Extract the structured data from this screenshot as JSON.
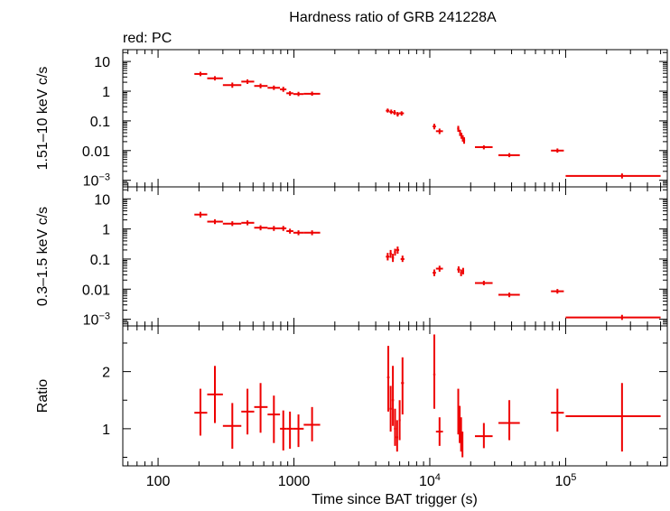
{
  "chart_data": {
    "type": "scatter",
    "title": "Hardness ratio of GRB 241228A",
    "subtitle": "red: PC",
    "xlabel": "Time since BAT trigger (s)",
    "xscale": "log",
    "xlim": [
      55,
      560000
    ],
    "x_ticks": [
      {
        "value": 100,
        "label": "100"
      },
      {
        "value": 1000,
        "label": "1000"
      },
      {
        "value": 10000,
        "label": "10",
        "sup": "4"
      },
      {
        "value": 100000,
        "label": "10",
        "sup": "5"
      }
    ],
    "series_color": "#ee0000",
    "panels": [
      {
        "name": "hard",
        "ylabel": "1.51–10 keV c/s",
        "yscale": "log",
        "ylim": [
          0.0006,
          25
        ],
        "y_ticks": [
          {
            "value": 10,
            "label": "10"
          },
          {
            "value": 1,
            "label": "1"
          },
          {
            "value": 0.1,
            "label": "0.1"
          },
          {
            "value": 0.01,
            "label": "0.01"
          },
          {
            "value": 0.001,
            "label": "10",
            "sup": "−3"
          }
        ],
        "points": [
          {
            "x": 205,
            "xlo": 185,
            "xhi": 230,
            "y": 3.8,
            "ylo": 3.2,
            "yhi": 4.5
          },
          {
            "x": 262,
            "xlo": 230,
            "xhi": 300,
            "y": 2.7,
            "ylo": 2.3,
            "yhi": 3.2
          },
          {
            "x": 352,
            "xlo": 300,
            "xhi": 410,
            "y": 1.6,
            "ylo": 1.3,
            "yhi": 1.95
          },
          {
            "x": 455,
            "xlo": 410,
            "xhi": 510,
            "y": 2.1,
            "ylo": 1.75,
            "yhi": 2.5
          },
          {
            "x": 568,
            "xlo": 510,
            "xhi": 640,
            "y": 1.5,
            "ylo": 1.25,
            "yhi": 1.8
          },
          {
            "x": 712,
            "xlo": 640,
            "xhi": 790,
            "y": 1.3,
            "ylo": 1.1,
            "yhi": 1.55
          },
          {
            "x": 835,
            "xlo": 790,
            "xhi": 880,
            "y": 1.15,
            "ylo": 0.95,
            "yhi": 1.4
          },
          {
            "x": 935,
            "xlo": 880,
            "xhi": 990,
            "y": 0.85,
            "ylo": 0.7,
            "yhi": 1.0
          },
          {
            "x": 1080,
            "xlo": 990,
            "xhi": 1180,
            "y": 0.8,
            "ylo": 0.68,
            "yhi": 0.95
          },
          {
            "x": 1360,
            "xlo": 1180,
            "xhi": 1560,
            "y": 0.82,
            "ylo": 0.7,
            "yhi": 0.97
          },
          {
            "x": 4900,
            "xlo": 4750,
            "xhi": 5050,
            "y": 0.22,
            "ylo": 0.19,
            "yhi": 0.26
          },
          {
            "x": 5200,
            "xlo": 5050,
            "xhi": 5350,
            "y": 0.2,
            "ylo": 0.17,
            "yhi": 0.24
          },
          {
            "x": 5500,
            "xlo": 5350,
            "xhi": 5650,
            "y": 0.19,
            "ylo": 0.16,
            "yhi": 0.23
          },
          {
            "x": 5800,
            "xlo": 5650,
            "xhi": 5950,
            "y": 0.17,
            "ylo": 0.14,
            "yhi": 0.2
          },
          {
            "x": 6200,
            "xlo": 5950,
            "xhi": 6450,
            "y": 0.18,
            "ylo": 0.15,
            "yhi": 0.21
          },
          {
            "x": 10800,
            "xlo": 10500,
            "xhi": 11100,
            "y": 0.065,
            "ylo": 0.052,
            "yhi": 0.08
          },
          {
            "x": 11800,
            "xlo": 11100,
            "xhi": 12500,
            "y": 0.045,
            "ylo": 0.036,
            "yhi": 0.055
          },
          {
            "x": 16200,
            "xlo": 15900,
            "xhi": 16500,
            "y": 0.055,
            "ylo": 0.043,
            "yhi": 0.068
          },
          {
            "x": 16700,
            "xlo": 16500,
            "xhi": 16900,
            "y": 0.04,
            "ylo": 0.031,
            "yhi": 0.05
          },
          {
            "x": 17100,
            "xlo": 16900,
            "xhi": 17300,
            "y": 0.032,
            "ylo": 0.025,
            "yhi": 0.04
          },
          {
            "x": 17500,
            "xlo": 17300,
            "xhi": 17700,
            "y": 0.026,
            "ylo": 0.02,
            "yhi": 0.033
          },
          {
            "x": 17900,
            "xlo": 17700,
            "xhi": 18200,
            "y": 0.022,
            "ylo": 0.017,
            "yhi": 0.028
          },
          {
            "x": 25000,
            "xlo": 21500,
            "xhi": 29000,
            "y": 0.013,
            "ylo": 0.011,
            "yhi": 0.015
          },
          {
            "x": 38500,
            "xlo": 32000,
            "xhi": 46000,
            "y": 0.007,
            "ylo": 0.006,
            "yhi": 0.0082
          },
          {
            "x": 87000,
            "xlo": 78000,
            "xhi": 97000,
            "y": 0.01,
            "ylo": 0.0085,
            "yhi": 0.0118
          },
          {
            "x": 260000,
            "xlo": 100000,
            "xhi": 500000,
            "y": 0.0014,
            "ylo": 0.00115,
            "yhi": 0.0017
          }
        ]
      },
      {
        "name": "soft",
        "ylabel": "0.3–1.5 keV c/s",
        "yscale": "log",
        "ylim": [
          0.0006,
          25
        ],
        "y_ticks": [
          {
            "value": 10,
            "label": "10"
          },
          {
            "value": 1,
            "label": "1"
          },
          {
            "value": 0.1,
            "label": "0.1"
          },
          {
            "value": 0.01,
            "label": "0.01"
          },
          {
            "value": 0.001,
            "label": "10",
            "sup": "−3"
          }
        ],
        "points": [
          {
            "x": 205,
            "xlo": 185,
            "xhi": 230,
            "y": 3.0,
            "ylo": 2.4,
            "yhi": 3.7
          },
          {
            "x": 262,
            "xlo": 230,
            "xhi": 300,
            "y": 1.75,
            "ylo": 1.45,
            "yhi": 2.1
          },
          {
            "x": 352,
            "xlo": 300,
            "xhi": 410,
            "y": 1.5,
            "ylo": 1.25,
            "yhi": 1.8
          },
          {
            "x": 455,
            "xlo": 410,
            "xhi": 510,
            "y": 1.6,
            "ylo": 1.32,
            "yhi": 1.92
          },
          {
            "x": 568,
            "xlo": 510,
            "xhi": 640,
            "y": 1.1,
            "ylo": 0.9,
            "yhi": 1.32
          },
          {
            "x": 712,
            "xlo": 640,
            "xhi": 790,
            "y": 1.05,
            "ylo": 0.86,
            "yhi": 1.26
          },
          {
            "x": 835,
            "xlo": 790,
            "xhi": 880,
            "y": 1.05,
            "ylo": 0.86,
            "yhi": 1.26
          },
          {
            "x": 935,
            "xlo": 880,
            "xhi": 990,
            "y": 0.85,
            "ylo": 0.7,
            "yhi": 1.02
          },
          {
            "x": 1080,
            "xlo": 990,
            "xhi": 1180,
            "y": 0.75,
            "ylo": 0.62,
            "yhi": 0.9
          },
          {
            "x": 1360,
            "xlo": 1180,
            "xhi": 1560,
            "y": 0.75,
            "ylo": 0.62,
            "yhi": 0.9
          },
          {
            "x": 4900,
            "xlo": 4750,
            "xhi": 5050,
            "y": 0.12,
            "ylo": 0.09,
            "yhi": 0.16
          },
          {
            "x": 5150,
            "xlo": 5050,
            "xhi": 5250,
            "y": 0.15,
            "ylo": 0.11,
            "yhi": 0.2
          },
          {
            "x": 5350,
            "xlo": 5250,
            "xhi": 5450,
            "y": 0.11,
            "ylo": 0.08,
            "yhi": 0.15
          },
          {
            "x": 5550,
            "xlo": 5450,
            "xhi": 5650,
            "y": 0.17,
            "ylo": 0.13,
            "yhi": 0.22
          },
          {
            "x": 5800,
            "xlo": 5650,
            "xhi": 5950,
            "y": 0.2,
            "ylo": 0.15,
            "yhi": 0.26
          },
          {
            "x": 6300,
            "xlo": 6100,
            "xhi": 6500,
            "y": 0.1,
            "ylo": 0.08,
            "yhi": 0.13
          },
          {
            "x": 10800,
            "xlo": 10500,
            "xhi": 11100,
            "y": 0.035,
            "ylo": 0.027,
            "yhi": 0.045
          },
          {
            "x": 11800,
            "xlo": 11100,
            "xhi": 12500,
            "y": 0.048,
            "ylo": 0.038,
            "yhi": 0.06
          },
          {
            "x": 16300,
            "xlo": 15900,
            "xhi": 16700,
            "y": 0.045,
            "ylo": 0.035,
            "yhi": 0.057
          },
          {
            "x": 17000,
            "xlo": 16700,
            "xhi": 17300,
            "y": 0.035,
            "ylo": 0.027,
            "yhi": 0.045
          },
          {
            "x": 17600,
            "xlo": 17300,
            "xhi": 17900,
            "y": 0.04,
            "ylo": 0.031,
            "yhi": 0.051
          },
          {
            "x": 25000,
            "xlo": 21500,
            "xhi": 29000,
            "y": 0.016,
            "ylo": 0.0135,
            "yhi": 0.019
          },
          {
            "x": 38500,
            "xlo": 32000,
            "xhi": 46000,
            "y": 0.0065,
            "ylo": 0.0054,
            "yhi": 0.0077
          },
          {
            "x": 87000,
            "xlo": 78000,
            "xhi": 97000,
            "y": 0.0085,
            "ylo": 0.0071,
            "yhi": 0.0101
          },
          {
            "x": 260000,
            "xlo": 100000,
            "xhi": 500000,
            "y": 0.00115,
            "ylo": 0.00095,
            "yhi": 0.0014
          }
        ]
      },
      {
        "name": "ratio",
        "ylabel": "Ratio",
        "yscale": "linear",
        "ylim": [
          0.35,
          2.8
        ],
        "y_ticks": [
          {
            "value": 1,
            "label": "1"
          },
          {
            "value": 2,
            "label": "2"
          }
        ],
        "points": [
          {
            "x": 205,
            "xlo": 185,
            "xhi": 230,
            "y": 1.28,
            "ylo": 0.88,
            "yhi": 1.7
          },
          {
            "x": 262,
            "xlo": 230,
            "xhi": 300,
            "y": 1.6,
            "ylo": 1.1,
            "yhi": 2.1
          },
          {
            "x": 352,
            "xlo": 300,
            "xhi": 410,
            "y": 1.05,
            "ylo": 0.65,
            "yhi": 1.45
          },
          {
            "x": 455,
            "xlo": 410,
            "xhi": 510,
            "y": 1.3,
            "ylo": 0.9,
            "yhi": 1.7
          },
          {
            "x": 568,
            "xlo": 510,
            "xhi": 640,
            "y": 1.38,
            "ylo": 0.93,
            "yhi": 1.8
          },
          {
            "x": 712,
            "xlo": 640,
            "xhi": 790,
            "y": 1.25,
            "ylo": 0.75,
            "yhi": 1.58
          },
          {
            "x": 835,
            "xlo": 790,
            "xhi": 880,
            "y": 1.0,
            "ylo": 0.62,
            "yhi": 1.32
          },
          {
            "x": 935,
            "xlo": 880,
            "xhi": 990,
            "y": 1.0,
            "ylo": 0.65,
            "yhi": 1.3
          },
          {
            "x": 1080,
            "xlo": 990,
            "xhi": 1180,
            "y": 1.0,
            "ylo": 0.68,
            "yhi": 1.25
          },
          {
            "x": 1360,
            "xlo": 1180,
            "xhi": 1560,
            "y": 1.07,
            "ylo": 0.78,
            "yhi": 1.38
          },
          {
            "x": 4950,
            "xlo": 4850,
            "xhi": 5050,
            "y": 1.9,
            "ylo": 1.3,
            "yhi": 2.45
          },
          {
            "x": 5150,
            "xlo": 5050,
            "xhi": 5250,
            "y": 1.35,
            "ylo": 0.95,
            "yhi": 1.75
          },
          {
            "x": 5350,
            "xlo": 5250,
            "xhi": 5450,
            "y": 1.5,
            "ylo": 1.05,
            "yhi": 2.1
          },
          {
            "x": 5550,
            "xlo": 5450,
            "xhi": 5650,
            "y": 1.0,
            "ylo": 0.7,
            "yhi": 1.35
          },
          {
            "x": 5750,
            "xlo": 5650,
            "xhi": 5850,
            "y": 0.85,
            "ylo": 0.6,
            "yhi": 1.15
          },
          {
            "x": 6000,
            "xlo": 5900,
            "xhi": 6100,
            "y": 1.15,
            "ylo": 0.8,
            "yhi": 1.5
          },
          {
            "x": 6300,
            "xlo": 6150,
            "xhi": 6450,
            "y": 1.8,
            "ylo": 1.25,
            "yhi": 2.25
          },
          {
            "x": 10800,
            "xlo": 10600,
            "xhi": 11000,
            "y": 1.95,
            "ylo": 1.35,
            "yhi": 2.65
          },
          {
            "x": 11800,
            "xlo": 11100,
            "xhi": 12500,
            "y": 0.95,
            "ylo": 0.7,
            "yhi": 1.2
          },
          {
            "x": 16200,
            "xlo": 16000,
            "xhi": 16400,
            "y": 1.25,
            "ylo": 0.9,
            "yhi": 1.7
          },
          {
            "x": 16600,
            "xlo": 16400,
            "xhi": 16800,
            "y": 1.05,
            "ylo": 0.75,
            "yhi": 1.4
          },
          {
            "x": 17000,
            "xlo": 16800,
            "xhi": 17200,
            "y": 0.85,
            "ylo": 0.6,
            "yhi": 1.2
          },
          {
            "x": 17400,
            "xlo": 17200,
            "xhi": 17600,
            "y": 0.7,
            "ylo": 0.5,
            "yhi": 0.95
          },
          {
            "x": 25000,
            "xlo": 21500,
            "xhi": 29000,
            "y": 0.87,
            "ylo": 0.66,
            "yhi": 1.1
          },
          {
            "x": 38500,
            "xlo": 32000,
            "xhi": 46000,
            "y": 1.1,
            "ylo": 0.8,
            "yhi": 1.5
          },
          {
            "x": 87000,
            "xlo": 78000,
            "xhi": 97000,
            "y": 1.28,
            "ylo": 0.95,
            "yhi": 1.7
          },
          {
            "x": 260000,
            "xlo": 100000,
            "xhi": 500000,
            "y": 1.22,
            "ylo": 0.6,
            "yhi": 1.8
          }
        ]
      }
    ]
  }
}
